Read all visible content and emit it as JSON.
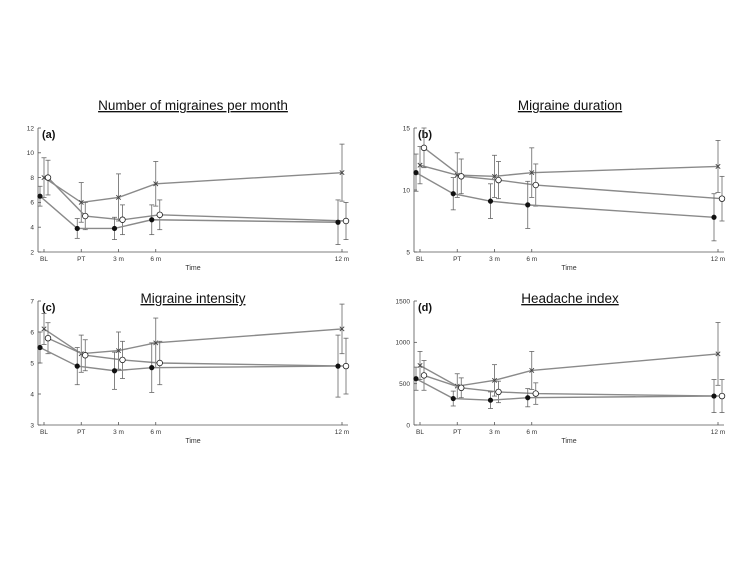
{
  "chart_data": [
    {
      "type": "line",
      "letter": "(a)",
      "title": "Number of migraines per month",
      "xlabel": "Time",
      "categories": [
        "BL",
        "PT",
        "3 m",
        "6 m",
        "12 m"
      ],
      "x": [
        0,
        1.5,
        3,
        4.5,
        12
      ],
      "ylim": [
        2,
        12
      ],
      "yticks": [
        "2",
        "4",
        "6",
        "8",
        "10",
        "12"
      ],
      "series": [
        {
          "marker": "cross",
          "values": [
            8.0,
            6.0,
            6.4,
            7.5,
            8.4
          ],
          "err": [
            1.6,
            1.6,
            1.9,
            1.8,
            2.3
          ]
        },
        {
          "marker": "open",
          "values": [
            8.0,
            4.9,
            4.6,
            5.0,
            4.5
          ],
          "err": [
            1.4,
            1.1,
            1.2,
            1.2,
            1.5
          ]
        },
        {
          "marker": "filled",
          "values": [
            6.5,
            3.9,
            3.9,
            4.6,
            4.4
          ],
          "err": [
            0.8,
            0.8,
            0.9,
            1.2,
            1.8
          ]
        }
      ]
    },
    {
      "type": "line",
      "letter": "(b)",
      "title": "Migraine duration",
      "xlabel": "Time",
      "categories": [
        "BL",
        "PT",
        "3 m",
        "6 m",
        "12 m"
      ],
      "x": [
        0,
        1.5,
        3,
        4.5,
        12
      ],
      "ylim": [
        5,
        15
      ],
      "yticks": [
        "5",
        "10",
        "15"
      ],
      "series": [
        {
          "marker": "cross",
          "values": [
            12.0,
            11.2,
            11.1,
            11.4,
            11.9
          ],
          "err": [
            1.5,
            1.8,
            1.7,
            2.0,
            2.1
          ]
        },
        {
          "marker": "open",
          "values": [
            13.4,
            11.1,
            10.8,
            10.4,
            9.3
          ],
          "err": [
            1.6,
            1.4,
            1.5,
            1.7,
            1.8
          ]
        },
        {
          "marker": "filled",
          "values": [
            11.4,
            9.7,
            9.1,
            8.8,
            7.8
          ],
          "err": [
            1.5,
            1.3,
            1.4,
            1.9,
            1.9
          ]
        }
      ]
    },
    {
      "type": "line",
      "letter": "(c)",
      "title": "Migraine intensity",
      "xlabel": "Time",
      "categories": [
        "BL",
        "PT",
        "3 m",
        "6 m",
        "12 m"
      ],
      "x": [
        0,
        1.5,
        3,
        4.5,
        12
      ],
      "ylim": [
        3,
        7
      ],
      "yticks": [
        "3",
        "4",
        "5",
        "6",
        "7"
      ],
      "series": [
        {
          "marker": "cross",
          "values": [
            6.1,
            5.3,
            5.4,
            5.65,
            6.1
          ],
          "err": [
            0.5,
            0.6,
            0.6,
            0.8,
            0.8
          ]
        },
        {
          "marker": "open",
          "values": [
            5.8,
            5.25,
            5.1,
            5.0,
            4.9
          ],
          "err": [
            0.5,
            0.5,
            0.6,
            0.7,
            0.9
          ]
        },
        {
          "marker": "filled",
          "values": [
            5.5,
            4.9,
            4.75,
            4.85,
            4.9
          ],
          "err": [
            0.5,
            0.6,
            0.6,
            0.8,
            1.0
          ]
        }
      ]
    },
    {
      "type": "line",
      "letter": "(d)",
      "title": "Headache index",
      "xlabel": "Time",
      "categories": [
        "BL",
        "PT",
        "3 m",
        "6 m",
        "12 m"
      ],
      "x": [
        0,
        1.5,
        3,
        4.5,
        12
      ],
      "ylim": [
        0,
        1500
      ],
      "yticks": [
        "0",
        "500",
        "1000",
        "1500"
      ],
      "series": [
        {
          "marker": "cross",
          "values": [
            720,
            470,
            540,
            660,
            860
          ],
          "err": [
            170,
            150,
            190,
            230,
            380
          ]
        },
        {
          "marker": "open",
          "values": [
            600,
            450,
            400,
            380,
            350
          ],
          "err": [
            180,
            120,
            130,
            130,
            200
          ]
        },
        {
          "marker": "filled",
          "values": [
            560,
            320,
            300,
            330,
            350
          ],
          "err": [
            140,
            90,
            100,
            110,
            200
          ]
        }
      ]
    }
  ]
}
